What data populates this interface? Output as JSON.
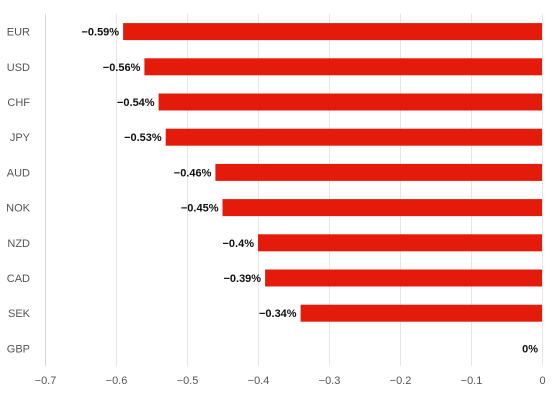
{
  "chart_data": {
    "type": "bar",
    "orientation": "horizontal",
    "categories": [
      "EUR",
      "USD",
      "CHF",
      "JPY",
      "AUD",
      "NOK",
      "NZD",
      "CAD",
      "SEK",
      "GBP"
    ],
    "values": [
      -0.59,
      -0.56,
      -0.54,
      -0.53,
      -0.46,
      -0.45,
      -0.4,
      -0.39,
      -0.34,
      0
    ],
    "data_labels": [
      "−0.59%",
      "−0.56%",
      "−0.54%",
      "−0.53%",
      "−0.46%",
      "−0.45%",
      "−0.4%",
      "−0.39%",
      "−0.34%",
      "0%"
    ],
    "x_ticks": [
      -0.7,
      -0.6,
      -0.5,
      -0.4,
      -0.3,
      -0.2,
      -0.1,
      0
    ],
    "x_tick_labels": [
      "−0.7",
      "−0.6",
      "−0.5",
      "−0.4",
      "−0.3",
      "−0.2",
      "−0.1",
      "0"
    ],
    "xlim": [
      -0.7,
      0
    ],
    "title": "",
    "xlabel": "",
    "ylabel": "",
    "grid": "vertical",
    "legend": "none",
    "bar_color": "#e41a0b"
  }
}
